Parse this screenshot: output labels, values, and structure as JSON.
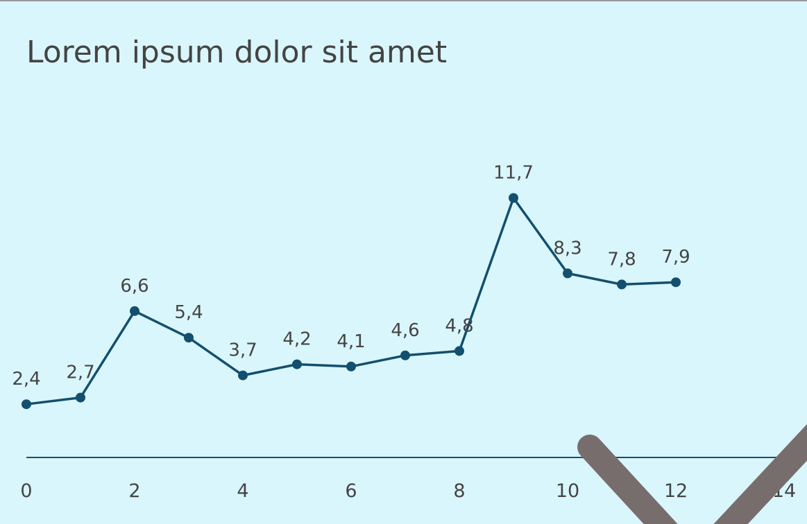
{
  "chart_data": {
    "type": "line",
    "title": "Lorem ipsum dolor sit amet",
    "x": [
      0,
      1,
      2,
      3,
      4,
      5,
      6,
      7,
      8,
      9,
      10,
      11,
      12
    ],
    "series": [
      {
        "name": null,
        "color": "#134f6e",
        "values": [
          2.4,
          2.7,
          6.6,
          5.4,
          3.7,
          4.2,
          4.1,
          4.6,
          4.8,
          11.7,
          8.3,
          7.8,
          7.9
        ],
        "value_labels": [
          "2,4",
          "2,7",
          "6,6",
          "5,4",
          "3,7",
          "4,2",
          "4,1",
          "4,6",
          "4,8",
          "11,7",
          "8,3",
          "7,8",
          "7,9"
        ]
      }
    ],
    "xlim": [
      0,
      14
    ],
    "xticks": [
      0,
      2,
      4,
      6,
      8,
      10,
      12,
      14
    ],
    "ylim": [
      0,
      14
    ]
  }
}
